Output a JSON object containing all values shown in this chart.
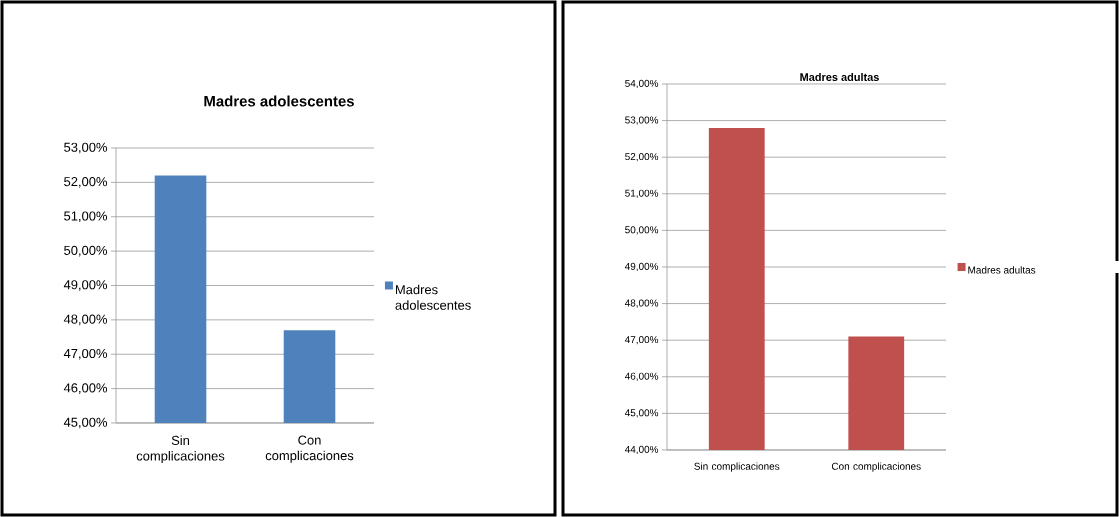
{
  "chart_data": [
    {
      "type": "bar",
      "title": "Madres adolescentes",
      "categories": [
        "Sin complicaciones",
        "Con complicaciones"
      ],
      "series": [
        {
          "name": "Madres adolescentes",
          "color": "#4f81bd",
          "values": [
            52.2,
            47.7
          ]
        }
      ],
      "ylim": [
        45,
        53
      ],
      "yticks": [
        {
          "value": 45,
          "label": "45,00%"
        },
        {
          "value": 46,
          "label": "46,00%"
        },
        {
          "value": 47,
          "label": "47,00%"
        },
        {
          "value": 48,
          "label": "48,00%"
        },
        {
          "value": 49,
          "label": "49,00%"
        },
        {
          "value": 50,
          "label": "50,00%"
        },
        {
          "value": 51,
          "label": "51,00%"
        },
        {
          "value": 52,
          "label": "52,00%"
        },
        {
          "value": 53,
          "label": "53,00%"
        }
      ],
      "grid": "y",
      "legend": "right"
    },
    {
      "type": "bar",
      "title": "Madres adultas",
      "categories": [
        "Sin complicaciones",
        "Con complicaciones"
      ],
      "series": [
        {
          "name": "Madres adultas",
          "color": "#c0504d",
          "values": [
            52.8,
            47.1
          ]
        }
      ],
      "ylim": [
        44,
        54
      ],
      "yticks": [
        {
          "value": 44,
          "label": "44,00%"
        },
        {
          "value": 45,
          "label": "45,00%"
        },
        {
          "value": 46,
          "label": "46,00%"
        },
        {
          "value": 47,
          "label": "47,00%"
        },
        {
          "value": 48,
          "label": "48,00%"
        },
        {
          "value": 49,
          "label": "49,00%"
        },
        {
          "value": 50,
          "label": "50,00%"
        },
        {
          "value": 51,
          "label": "51,00%"
        },
        {
          "value": 52,
          "label": "52,00%"
        },
        {
          "value": 53,
          "label": "53,00%"
        },
        {
          "value": 54,
          "label": "54,00%"
        }
      ],
      "grid": "y",
      "legend": "right"
    }
  ]
}
